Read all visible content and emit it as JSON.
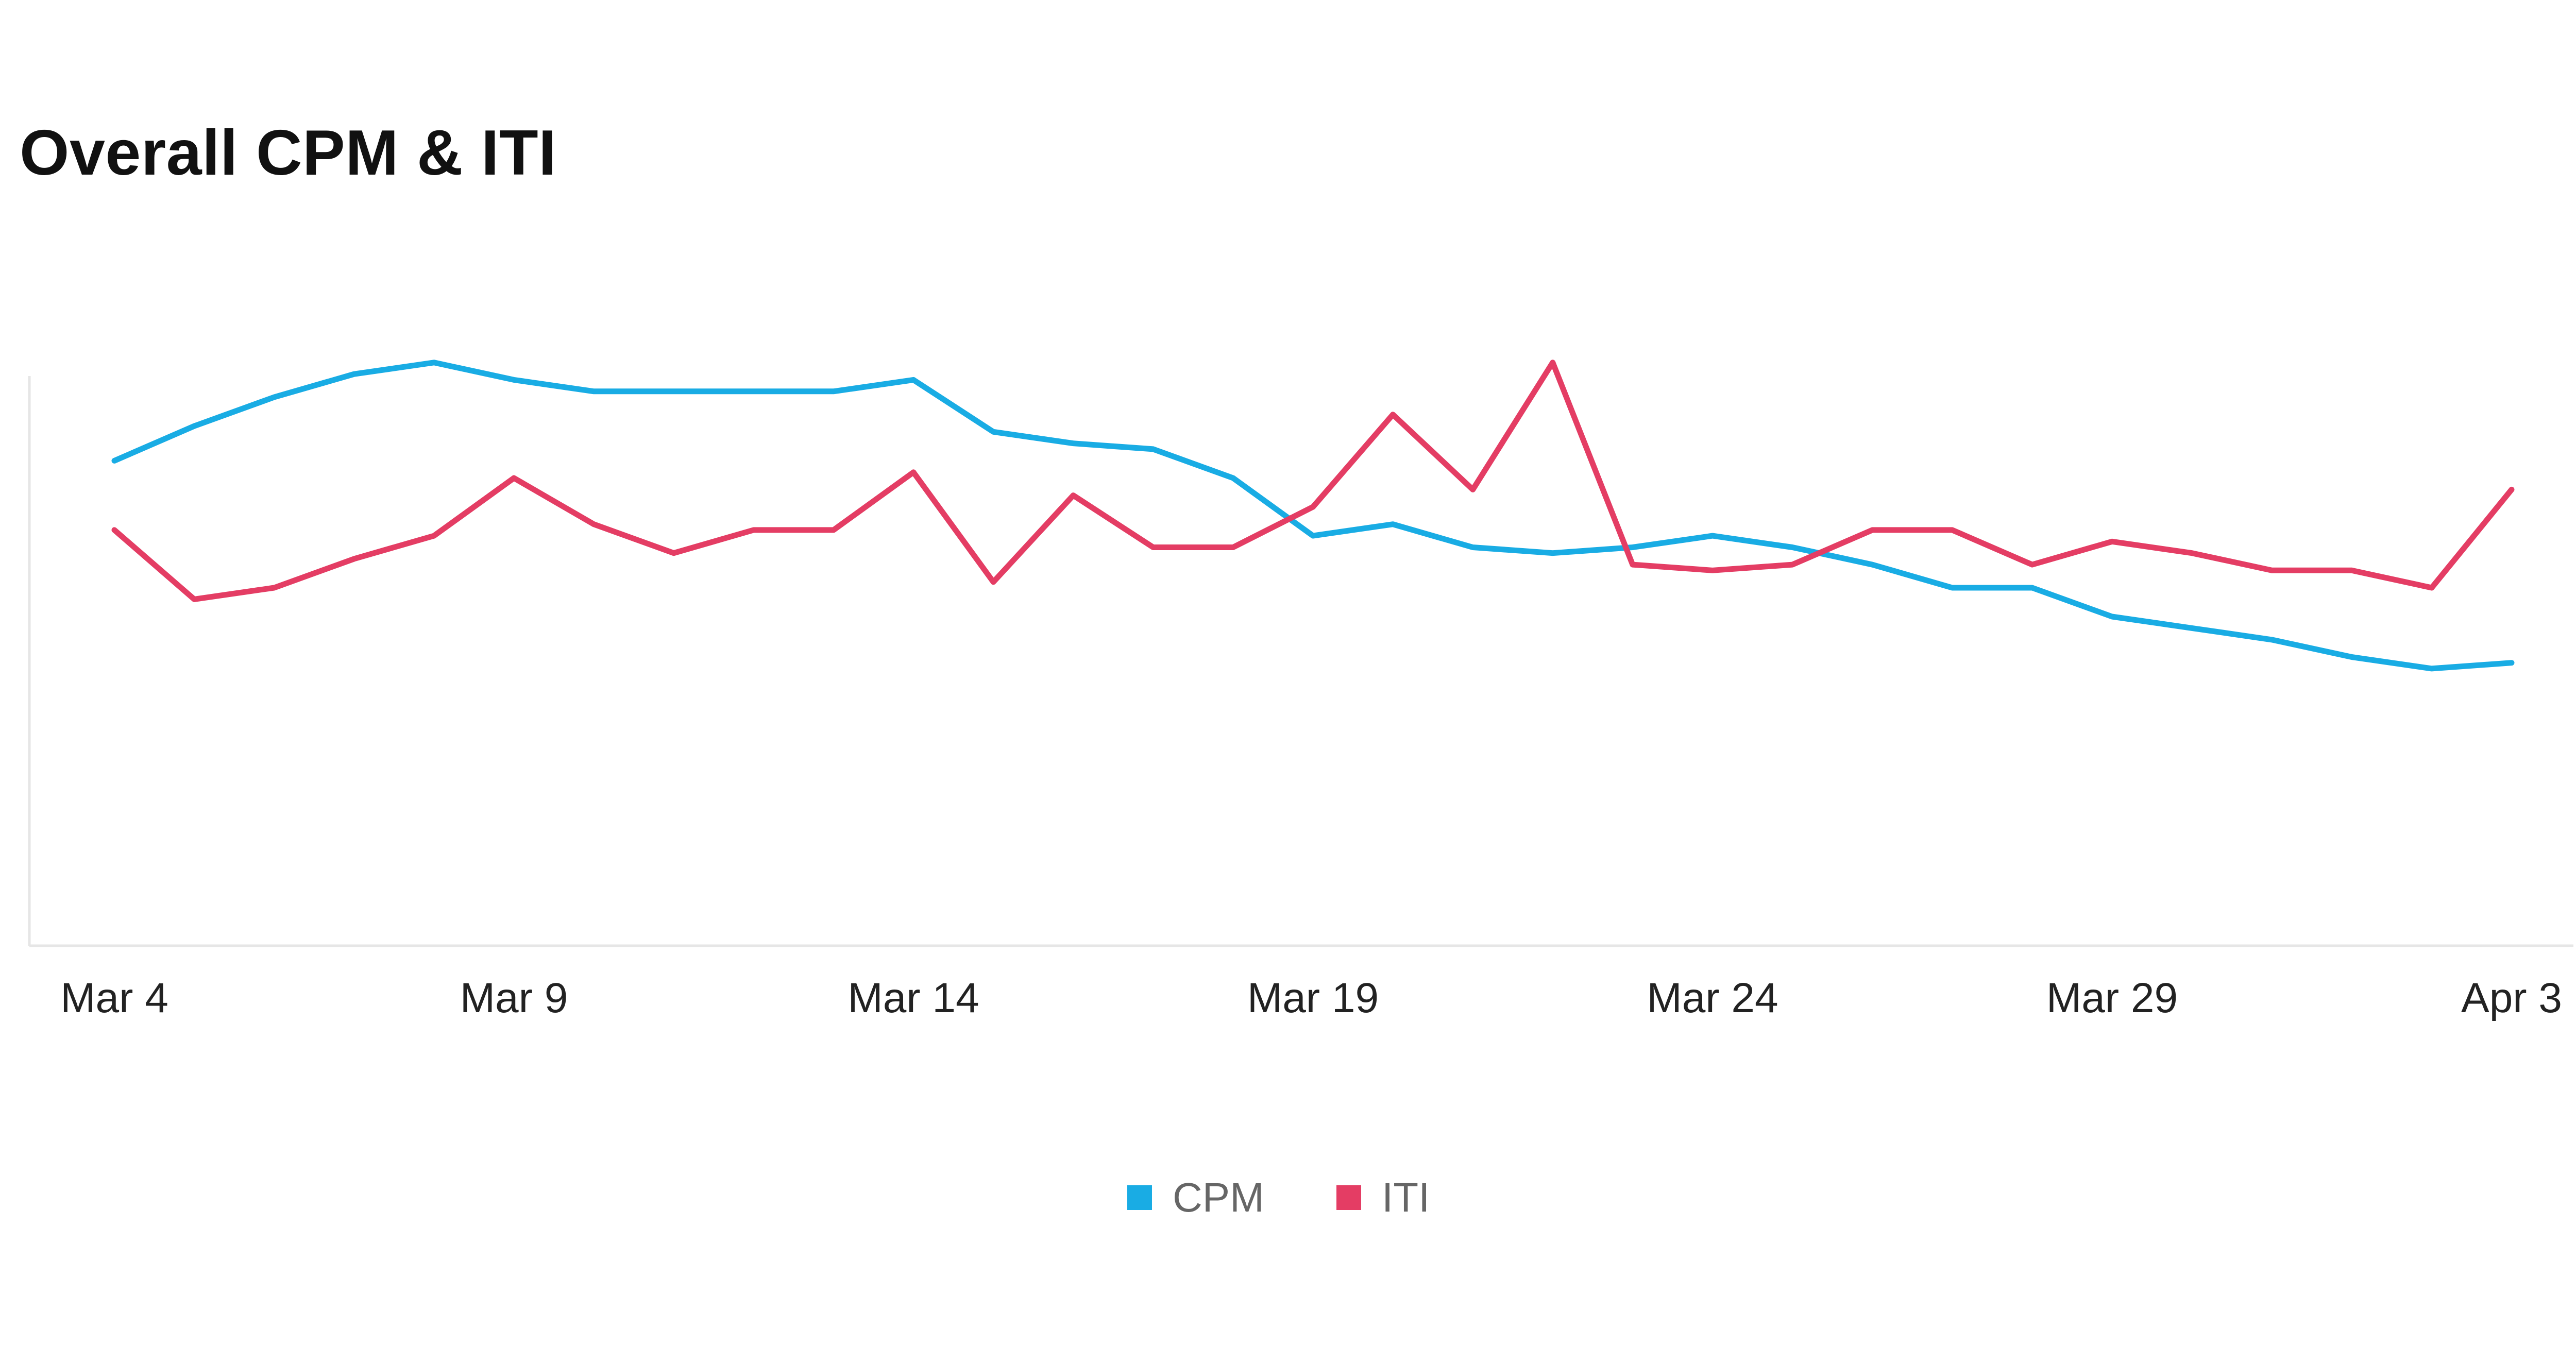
{
  "chart_data": {
    "type": "line",
    "title": "Overall CPM & ITI",
    "xlabel": "",
    "ylabel": "",
    "x": [
      "Mar 4",
      "Mar 5",
      "Mar 6",
      "Mar 7",
      "Mar 8",
      "Mar 9",
      "Mar 10",
      "Mar 11",
      "Mar 12",
      "Mar 13",
      "Mar 14",
      "Mar 15",
      "Mar 16",
      "Mar 17",
      "Mar 18",
      "Mar 19",
      "Mar 20",
      "Mar 21",
      "Mar 22",
      "Mar 23",
      "Mar 24",
      "Mar 25",
      "Mar 26",
      "Mar 27",
      "Mar 28",
      "Mar 29",
      "Mar 30",
      "Mar 31",
      "Apr 1",
      "Apr 2",
      "Apr 3"
    ],
    "x_ticks": [
      "Mar 4",
      "Mar 9",
      "Mar 14",
      "Mar 19",
      "Mar 24",
      "Mar 29",
      "Apr 3"
    ],
    "ylim": [
      0,
      100
    ],
    "y_ticks_visible": false,
    "grid": false,
    "legend_position": "bottom-center",
    "series": [
      {
        "name": "CPM",
        "color": "#19ace4",
        "values": [
          84,
          90,
          95,
          99,
          101,
          98,
          96,
          96,
          96,
          96,
          98,
          89,
          87,
          86,
          81,
          71,
          73,
          69,
          68,
          69,
          71,
          69,
          66,
          62,
          62,
          57,
          55,
          53,
          50,
          48,
          49
        ]
      },
      {
        "name": "ITI",
        "color": "#e43d64",
        "values": [
          72,
          60,
          62,
          67,
          71,
          81,
          73,
          68,
          72,
          72,
          82,
          63,
          78,
          69,
          69,
          76,
          92,
          79,
          101,
          66,
          65,
          66,
          72,
          72,
          66,
          70,
          68,
          65,
          65,
          62,
          79
        ]
      }
    ]
  }
}
